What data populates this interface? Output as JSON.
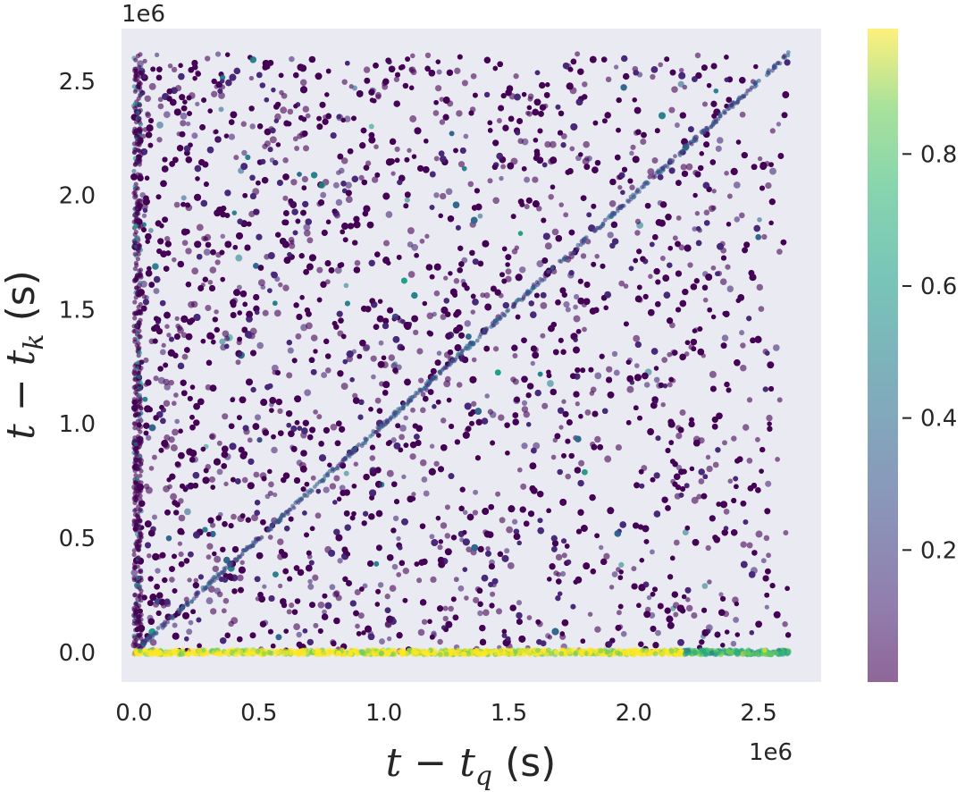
{
  "chart_data": {
    "type": "scatter",
    "title": "",
    "xlabel": {
      "var": "t",
      "minus": " − ",
      "sub_var": "t",
      "sub": "q",
      "unit": " (s)"
    },
    "ylabel": {
      "var": "t",
      "minus": " − ",
      "sub_var": "t",
      "sub": "k",
      "unit": " (s)"
    },
    "x_offset_label": "1e6",
    "y_offset_label": "1e6",
    "xlim": [
      -0.05,
      2.75
    ],
    "ylim": [
      -0.13,
      2.73
    ],
    "x_ticks": [
      0.0,
      0.5,
      1.0,
      1.5,
      2.0,
      2.5
    ],
    "x_tick_labels": [
      "0.0",
      "0.5",
      "1.0",
      "1.5",
      "2.0",
      "2.5"
    ],
    "y_ticks": [
      0.0,
      0.5,
      1.0,
      1.5,
      2.0,
      2.5
    ],
    "y_tick_labels": [
      "0.0",
      "0.5",
      "1.0",
      "1.5",
      "2.0",
      "2.5"
    ],
    "grid": false,
    "colormap": "viridis",
    "alpha": 0.6,
    "colorbar": {
      "range": [
        0.0,
        0.99
      ],
      "ticks": [
        0.2,
        0.4,
        0.6,
        0.8
      ],
      "tick_labels": [
        "0.2",
        "0.4",
        "0.6",
        "0.8"
      ]
    },
    "density_description": "dense low-value points filling region below x≈2.6e6, y≈2.6e6; high values (~1.0) along y≈0; faint diagonal y=x",
    "axes_background": "#eaeaf2"
  }
}
